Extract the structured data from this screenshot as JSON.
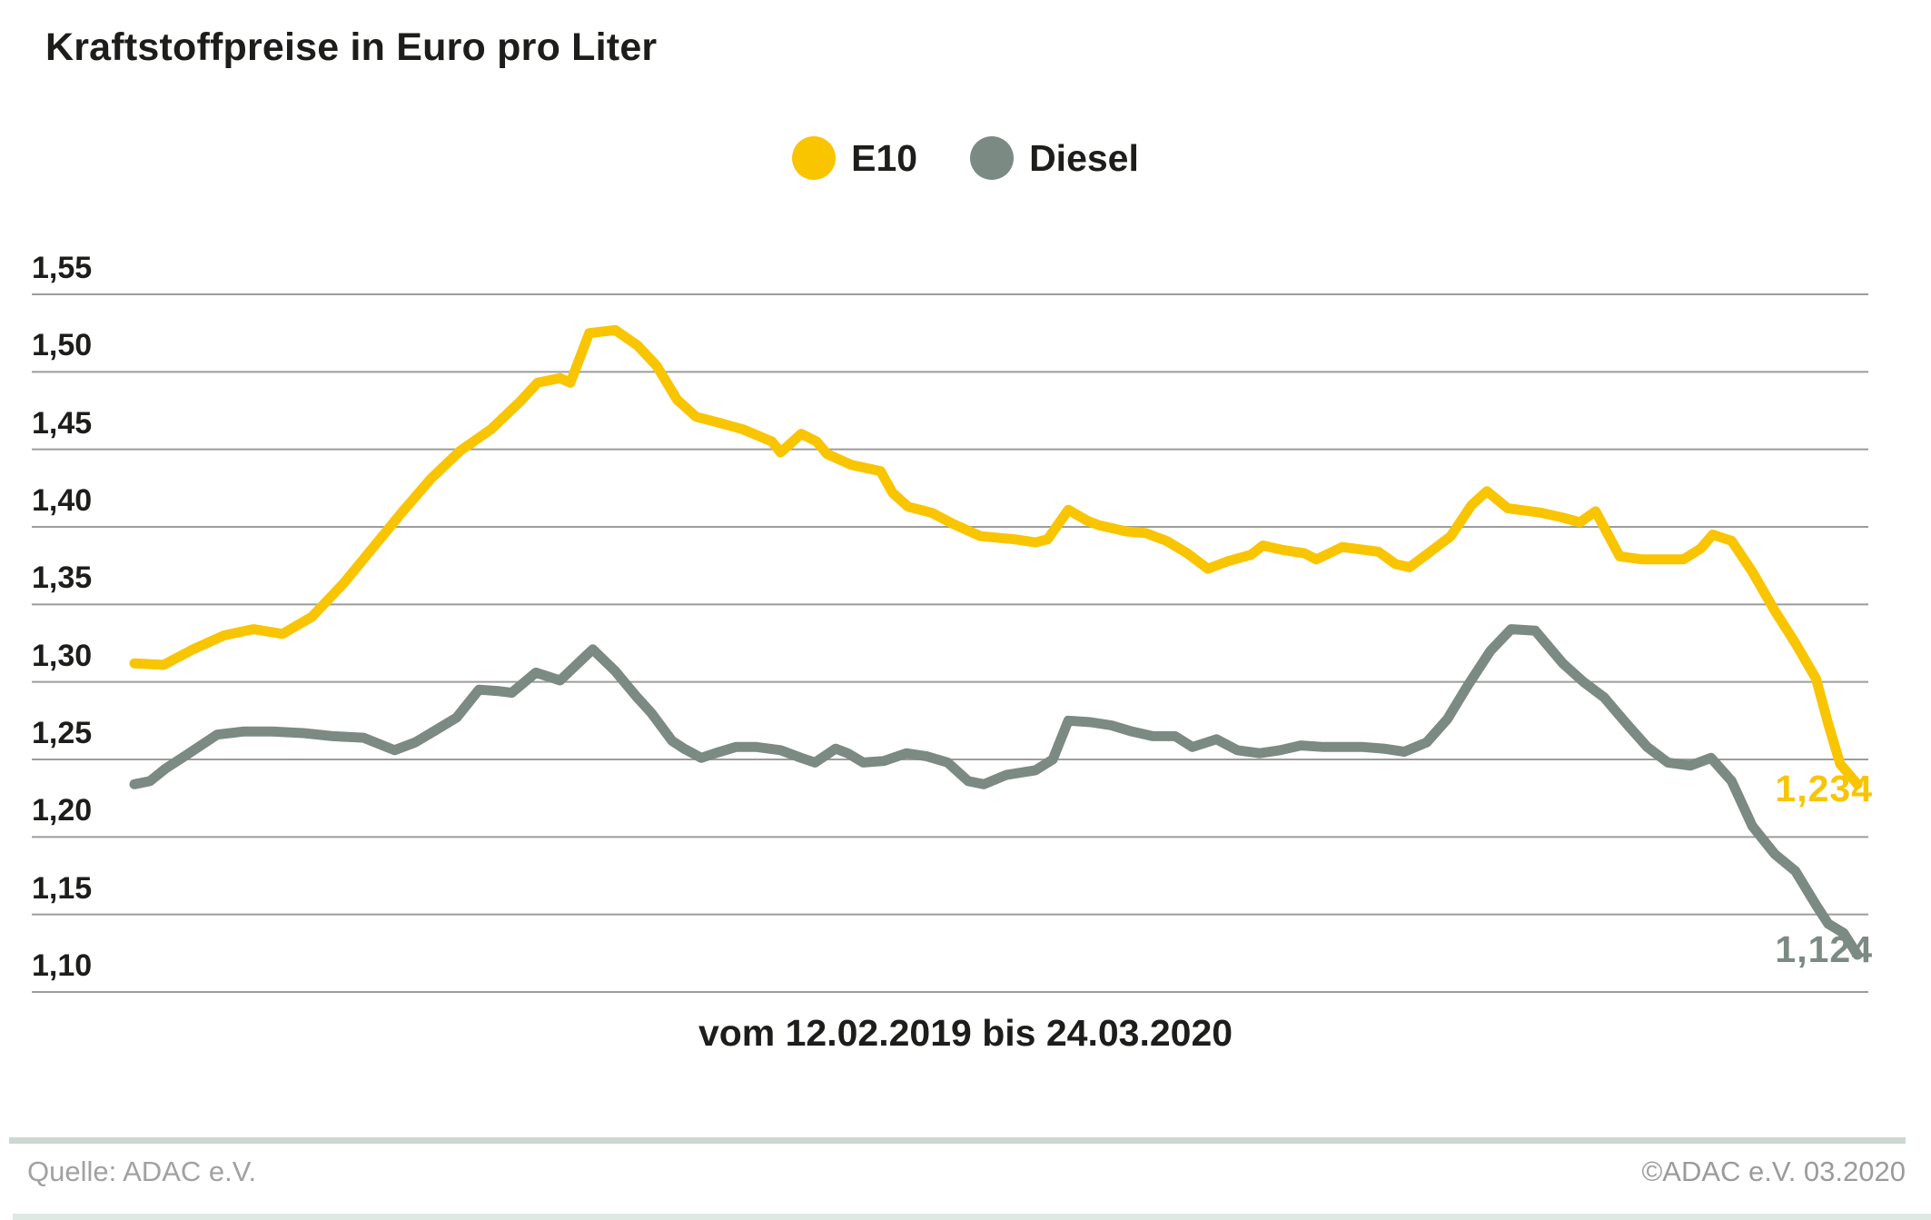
{
  "footer": {
    "source": "Quelle: ADAC e.V.",
    "copyright": "©ADAC e.V.  03.2020"
  },
  "colors": {
    "e10": "#F8C500",
    "diesel": "#7B8A83",
    "gridline": "#9c9c9c",
    "text": "#1d1d1b",
    "footer_text": "#a1a1a1",
    "divider": "#ccd8d1",
    "bottom_bar": "#dfe9e3"
  },
  "chart_data": {
    "type": "line",
    "title": "Kraftstoffpreise in Euro pro Liter",
    "caption": "vom 12.02.2019 bis 24.03.2020",
    "x_range": [
      "12.02.2019",
      "24.03.2020"
    ],
    "ylabel": "Euro pro Liter",
    "ylim": [
      1.1,
      1.55
    ],
    "grid": "horizontal",
    "legend_position": "top-center",
    "y_ticks": [
      {
        "value": 1.55,
        "label": "1,55"
      },
      {
        "value": 1.5,
        "label": "1,50"
      },
      {
        "value": 1.45,
        "label": "1,45"
      },
      {
        "value": 1.4,
        "label": "1,40"
      },
      {
        "value": 1.35,
        "label": "1,35"
      },
      {
        "value": 1.3,
        "label": "1,30"
      },
      {
        "value": 1.25,
        "label": "1,25"
      },
      {
        "value": 1.2,
        "label": "1,20"
      },
      {
        "value": 1.15,
        "label": "1,15"
      },
      {
        "value": 1.1,
        "label": "1,10"
      }
    ],
    "series": [
      {
        "name": "E10",
        "color": "#F8C500",
        "end_label": "1,234",
        "last_value": 1.234,
        "points": [
          [
            0.0,
            1.312
          ],
          [
            0.017,
            1.311
          ],
          [
            0.034,
            1.321
          ],
          [
            0.052,
            1.33
          ],
          [
            0.069,
            1.334
          ],
          [
            0.086,
            1.331
          ],
          [
            0.103,
            1.342
          ],
          [
            0.121,
            1.363
          ],
          [
            0.138,
            1.386
          ],
          [
            0.155,
            1.409
          ],
          [
            0.172,
            1.431
          ],
          [
            0.189,
            1.449
          ],
          [
            0.207,
            1.463
          ],
          [
            0.224,
            1.481
          ],
          [
            0.234,
            1.493
          ],
          [
            0.247,
            1.496
          ],
          [
            0.253,
            1.493
          ],
          [
            0.264,
            1.525
          ],
          [
            0.279,
            1.527
          ],
          [
            0.292,
            1.517
          ],
          [
            0.303,
            1.504
          ],
          [
            0.315,
            1.482
          ],
          [
            0.326,
            1.471
          ],
          [
            0.34,
            1.467
          ],
          [
            0.353,
            1.463
          ],
          [
            0.37,
            1.455
          ],
          [
            0.375,
            1.448
          ],
          [
            0.387,
            1.46
          ],
          [
            0.396,
            1.455
          ],
          [
            0.402,
            1.447
          ],
          [
            0.416,
            1.44
          ],
          [
            0.433,
            1.436
          ],
          [
            0.44,
            1.422
          ],
          [
            0.449,
            1.413
          ],
          [
            0.463,
            1.409
          ],
          [
            0.475,
            1.402
          ],
          [
            0.491,
            1.394
          ],
          [
            0.511,
            1.392
          ],
          [
            0.523,
            1.39
          ],
          [
            0.53,
            1.392
          ],
          [
            0.542,
            1.411
          ],
          [
            0.553,
            1.404
          ],
          [
            0.56,
            1.401
          ],
          [
            0.576,
            1.397
          ],
          [
            0.587,
            1.396
          ],
          [
            0.599,
            1.391
          ],
          [
            0.611,
            1.383
          ],
          [
            0.623,
            1.373
          ],
          [
            0.635,
            1.378
          ],
          [
            0.648,
            1.382
          ],
          [
            0.655,
            1.388
          ],
          [
            0.667,
            1.385
          ],
          [
            0.679,
            1.383
          ],
          [
            0.686,
            1.379
          ],
          [
            0.701,
            1.387
          ],
          [
            0.722,
            1.384
          ],
          [
            0.732,
            1.376
          ],
          [
            0.74,
            1.374
          ],
          [
            0.751,
            1.383
          ],
          [
            0.764,
            1.394
          ],
          [
            0.776,
            1.414
          ],
          [
            0.785,
            1.423
          ],
          [
            0.797,
            1.412
          ],
          [
            0.817,
            1.409
          ],
          [
            0.829,
            1.406
          ],
          [
            0.839,
            1.403
          ],
          [
            0.848,
            1.41
          ],
          [
            0.862,
            1.381
          ],
          [
            0.875,
            1.379
          ],
          [
            0.887,
            1.379
          ],
          [
            0.899,
            1.379
          ],
          [
            0.909,
            1.386
          ],
          [
            0.916,
            1.395
          ],
          [
            0.927,
            1.391
          ],
          [
            0.939,
            1.371
          ],
          [
            0.952,
            1.346
          ],
          [
            0.964,
            1.325
          ],
          [
            0.976,
            1.302
          ],
          [
            0.983,
            1.273
          ],
          [
            0.99,
            1.247
          ],
          [
            1.0,
            1.234
          ]
        ]
      },
      {
        "name": "Diesel",
        "color": "#7B8A83",
        "end_label": "1,124",
        "last_value": 1.124,
        "points": [
          [
            0.0,
            1.234
          ],
          [
            0.009,
            1.236
          ],
          [
            0.018,
            1.244
          ],
          [
            0.029,
            1.252
          ],
          [
            0.048,
            1.266
          ],
          [
            0.063,
            1.268
          ],
          [
            0.08,
            1.268
          ],
          [
            0.098,
            1.267
          ],
          [
            0.115,
            1.265
          ],
          [
            0.133,
            1.264
          ],
          [
            0.151,
            1.256
          ],
          [
            0.163,
            1.261
          ],
          [
            0.175,
            1.269
          ],
          [
            0.187,
            1.277
          ],
          [
            0.2,
            1.295
          ],
          [
            0.212,
            1.294
          ],
          [
            0.219,
            1.293
          ],
          [
            0.233,
            1.306
          ],
          [
            0.247,
            1.301
          ],
          [
            0.266,
            1.321
          ],
          [
            0.279,
            1.307
          ],
          [
            0.291,
            1.291
          ],
          [
            0.3,
            1.28
          ],
          [
            0.312,
            1.262
          ],
          [
            0.319,
            1.257
          ],
          [
            0.329,
            1.251
          ],
          [
            0.337,
            1.254
          ],
          [
            0.349,
            1.258
          ],
          [
            0.361,
            1.258
          ],
          [
            0.375,
            1.256
          ],
          [
            0.387,
            1.251
          ],
          [
            0.395,
            1.248
          ],
          [
            0.407,
            1.257
          ],
          [
            0.414,
            1.254
          ],
          [
            0.423,
            1.248
          ],
          [
            0.435,
            1.249
          ],
          [
            0.448,
            1.254
          ],
          [
            0.46,
            1.252
          ],
          [
            0.472,
            1.248
          ],
          [
            0.484,
            1.236
          ],
          [
            0.493,
            1.234
          ],
          [
            0.506,
            1.24
          ],
          [
            0.523,
            1.243
          ],
          [
            0.533,
            1.25
          ],
          [
            0.542,
            1.275
          ],
          [
            0.555,
            1.274
          ],
          [
            0.567,
            1.272
          ],
          [
            0.579,
            1.268
          ],
          [
            0.591,
            1.265
          ],
          [
            0.604,
            1.265
          ],
          [
            0.614,
            1.258
          ],
          [
            0.628,
            1.263
          ],
          [
            0.64,
            1.256
          ],
          [
            0.653,
            1.254
          ],
          [
            0.665,
            1.256
          ],
          [
            0.677,
            1.259
          ],
          [
            0.69,
            1.258
          ],
          [
            0.713,
            1.258
          ],
          [
            0.725,
            1.257
          ],
          [
            0.737,
            1.255
          ],
          [
            0.75,
            1.261
          ],
          [
            0.762,
            1.276
          ],
          [
            0.774,
            1.298
          ],
          [
            0.787,
            1.32
          ],
          [
            0.799,
            1.334
          ],
          [
            0.813,
            1.333
          ],
          [
            0.829,
            1.312
          ],
          [
            0.841,
            1.3
          ],
          [
            0.853,
            1.29
          ],
          [
            0.866,
            1.273
          ],
          [
            0.878,
            1.258
          ],
          [
            0.89,
            1.248
          ],
          [
            0.903,
            1.246
          ],
          [
            0.915,
            1.251
          ],
          [
            0.927,
            1.236
          ],
          [
            0.939,
            1.207
          ],
          [
            0.952,
            1.189
          ],
          [
            0.964,
            1.178
          ],
          [
            0.976,
            1.156
          ],
          [
            0.983,
            1.144
          ],
          [
            0.992,
            1.138
          ],
          [
            1.0,
            1.124
          ]
        ]
      }
    ]
  }
}
